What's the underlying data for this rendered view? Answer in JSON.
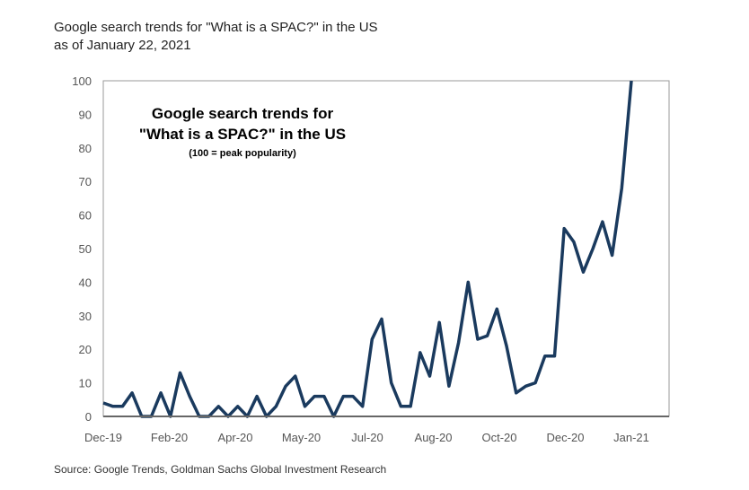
{
  "title": "Google search trends for \"What is a SPAC?\" in the US",
  "subtitle": "as of January 22, 2021",
  "source": "Source: Google Trends, Goldman Sachs Global Investment Research",
  "chart_data": {
    "type": "line",
    "title": "Google search trends for \"What is a SPAC?\" in the US",
    "inset_title_line1": "Google search trends for",
    "inset_title_line2": "\"What is a SPAC?\" in the US",
    "inset_note": "(100 = peak popularity)",
    "xlabel": "",
    "ylabel": "",
    "ylim": [
      0,
      100
    ],
    "yticks": [
      "0",
      "10",
      "20",
      "30",
      "40",
      "50",
      "60",
      "70",
      "80",
      "90",
      "100"
    ],
    "xticks": [
      "Dec-19",
      "Feb-20",
      "Apr-20",
      "May-20",
      "Jul-20",
      "Aug-20",
      "Oct-20",
      "Dec-20",
      "Jan-21"
    ],
    "color": "#1a3a5e",
    "series": [
      {
        "name": "What is a SPAC?",
        "values": [
          4,
          3,
          3,
          7,
          0,
          0,
          7,
          0,
          13,
          6,
          0,
          0,
          3,
          0,
          3,
          0,
          6,
          0,
          3,
          9,
          12,
          3,
          6,
          6,
          0,
          6,
          6,
          3,
          23,
          29,
          10,
          3,
          3,
          19,
          12,
          28,
          9,
          22,
          40,
          23,
          24,
          32,
          21,
          7,
          9,
          10,
          18,
          18,
          56,
          52,
          43,
          50,
          58,
          48,
          68,
          100
        ]
      }
    ]
  }
}
